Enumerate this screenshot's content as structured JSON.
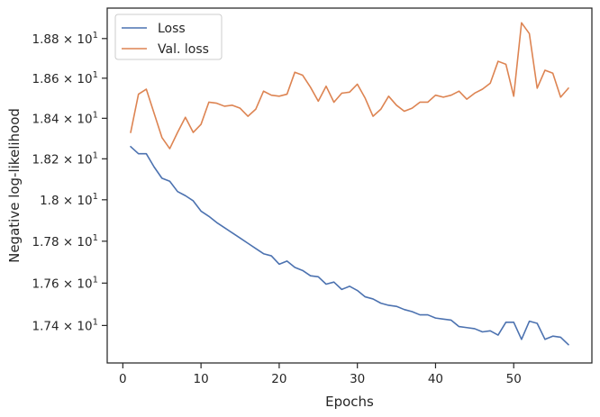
{
  "chart_data": {
    "type": "line",
    "xlabel": "Epochs",
    "ylabel": "Negative log-likelihood",
    "y_scale": "log",
    "xlim": [
      -2,
      60
    ],
    "ylim": [
      17.225,
      18.955
    ],
    "x_ticks": [
      0,
      10,
      20,
      30,
      40,
      50
    ],
    "y_ticks": [
      {
        "value": 17.4,
        "mantissa": "1.74",
        "base": "10",
        "exp": "1"
      },
      {
        "value": 17.6,
        "mantissa": "1.76",
        "base": "10",
        "exp": "1"
      },
      {
        "value": 17.8,
        "mantissa": "1.78",
        "base": "10",
        "exp": "1"
      },
      {
        "value": 18.0,
        "mantissa": "1.8",
        "base": "10",
        "exp": "1"
      },
      {
        "value": 18.2,
        "mantissa": "1.82",
        "base": "10",
        "exp": "1"
      },
      {
        "value": 18.4,
        "mantissa": "1.84",
        "base": "10",
        "exp": "1"
      },
      {
        "value": 18.6,
        "mantissa": "1.86",
        "base": "10",
        "exp": "1"
      },
      {
        "value": 18.8,
        "mantissa": "1.88",
        "base": "10",
        "exp": "1"
      }
    ],
    "grid": false,
    "legend_position": "top-left",
    "series": [
      {
        "name": "Loss",
        "color": "#4c72b0",
        "x": [
          1,
          2,
          3,
          4,
          5,
          6,
          7,
          8,
          9,
          10,
          11,
          12,
          13,
          14,
          15,
          16,
          17,
          18,
          19,
          20,
          21,
          22,
          23,
          24,
          25,
          26,
          27,
          28,
          29,
          30,
          31,
          32,
          33,
          34,
          35,
          36,
          37,
          38,
          39,
          40,
          41,
          42,
          43,
          44,
          45,
          46,
          47,
          48,
          49,
          50,
          51,
          52,
          53,
          54,
          55,
          56,
          57
        ],
        "y": [
          18.26,
          18.225,
          18.225,
          18.16,
          18.105,
          18.09,
          18.04,
          18.02,
          17.995,
          17.945,
          17.92,
          17.89,
          17.865,
          17.84,
          17.815,
          17.79,
          17.765,
          17.74,
          17.73,
          17.69,
          17.705,
          17.675,
          17.66,
          17.635,
          17.63,
          17.595,
          17.605,
          17.57,
          17.585,
          17.565,
          17.535,
          17.525,
          17.505,
          17.495,
          17.49,
          17.475,
          17.465,
          17.45,
          17.45,
          17.435,
          17.43,
          17.425,
          17.395,
          17.39,
          17.385,
          17.37,
          17.375,
          17.355,
          17.415,
          17.415,
          17.335,
          17.42,
          17.41,
          17.335,
          17.35,
          17.345,
          17.31
        ]
      },
      {
        "name": "Val. loss",
        "color": "#dd8452",
        "x": [
          1,
          2,
          3,
          4,
          5,
          6,
          7,
          8,
          9,
          10,
          11,
          12,
          13,
          14,
          15,
          16,
          17,
          18,
          19,
          20,
          21,
          22,
          23,
          24,
          25,
          26,
          27,
          28,
          29,
          30,
          31,
          32,
          33,
          34,
          35,
          36,
          37,
          38,
          39,
          40,
          41,
          42,
          43,
          44,
          45,
          46,
          47,
          48,
          49,
          50,
          51,
          52,
          53,
          54,
          55,
          56,
          57
        ],
        "y": [
          18.33,
          18.52,
          18.545,
          18.425,
          18.305,
          18.25,
          18.33,
          18.405,
          18.33,
          18.37,
          18.48,
          18.475,
          18.46,
          18.465,
          18.45,
          18.41,
          18.445,
          18.535,
          18.515,
          18.51,
          18.52,
          18.63,
          18.615,
          18.555,
          18.485,
          18.56,
          18.48,
          18.525,
          18.53,
          18.57,
          18.5,
          18.41,
          18.445,
          18.51,
          18.465,
          18.435,
          18.45,
          18.48,
          18.48,
          18.515,
          18.505,
          18.515,
          18.535,
          18.495,
          18.525,
          18.545,
          18.575,
          18.685,
          18.67,
          18.51,
          18.88,
          18.825,
          18.55,
          18.64,
          18.625,
          18.505,
          18.55
        ]
      }
    ]
  }
}
